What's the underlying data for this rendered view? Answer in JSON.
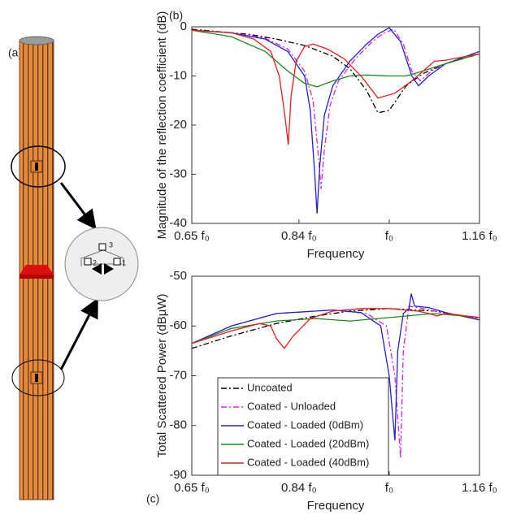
{
  "illustration": {
    "panel_label": "(a)",
    "pins": [
      "3",
      "2",
      "1"
    ]
  },
  "chart_data": [
    {
      "type": "line",
      "panel_label": "(b)",
      "y_label": "Magnitude of the reflection coefficient (dB)",
      "x_label": "Frequency",
      "xlim": [
        0.65,
        1.16
      ],
      "xticks": [
        {
          "value": 0.65,
          "label": "0.65 f₀"
        },
        {
          "value": 0.84,
          "label": "0.84 f₀"
        },
        {
          "value": 1.0,
          "label": "f₀"
        },
        {
          "value": 1.16,
          "label": "1.16 f₀"
        }
      ],
      "ylim": [
        -40,
        0
      ],
      "yticks": [
        -40,
        -30,
        -20,
        -10,
        0
      ],
      "series": [
        {
          "color": "#000000",
          "style": "dashdot",
          "x": [
            0.65,
            0.7,
            0.75,
            0.8,
            0.85,
            0.9,
            0.93,
            0.96,
            0.98,
            1.0,
            1.03,
            1.06,
            1.1,
            1.16
          ],
          "values": [
            -0.5,
            -1,
            -1.5,
            -2.5,
            -3.8,
            -6,
            -8.5,
            -13,
            -17.5,
            -17,
            -12,
            -9.5,
            -7.5,
            -5.5
          ]
        },
        {
          "color": "#e020e0",
          "style": "dashdot",
          "x": [
            0.65,
            0.72,
            0.78,
            0.82,
            0.85,
            0.865,
            0.875,
            0.879,
            0.885,
            0.895,
            0.91,
            0.94,
            0.97,
            0.99,
            1.008,
            1.025,
            1.04,
            1.055,
            1.075,
            1.1,
            1.16
          ],
          "values": [
            -0.7,
            -1.2,
            -2.3,
            -4.5,
            -9,
            -15,
            -27,
            -33,
            -25,
            -16,
            -11,
            -6.5,
            -3,
            -1.3,
            -0.5,
            -3.5,
            -9,
            -11,
            -9,
            -7.5,
            -5
          ]
        },
        {
          "color": "#1f1fe0",
          "style": "solid",
          "x": [
            0.65,
            0.72,
            0.78,
            0.82,
            0.85,
            0.86,
            0.868,
            0.872,
            0.877,
            0.885,
            0.9,
            0.93,
            0.96,
            0.98,
            1.0,
            1.02,
            1.04,
            1.052,
            1.07,
            1.1,
            1.16
          ],
          "values": [
            -0.7,
            -1.2,
            -2.5,
            -5,
            -10,
            -17,
            -30,
            -38,
            -28,
            -18,
            -12,
            -7,
            -3.5,
            -1.5,
            -0.2,
            -3,
            -10,
            -12,
            -10,
            -7.5,
            -5
          ]
        },
        {
          "color": "#1a8a1a",
          "style": "solid",
          "x": [
            0.65,
            0.72,
            0.78,
            0.82,
            0.85,
            0.872,
            0.9,
            0.93,
            0.96,
            1.0,
            1.03,
            1.06,
            1.1,
            1.16
          ],
          "values": [
            -0.7,
            -2,
            -5,
            -9,
            -11.5,
            -12.2,
            -11,
            -10,
            -9.8,
            -10,
            -10,
            -9,
            -7.5,
            -5.5
          ]
        },
        {
          "color": "#ee1c1c",
          "style": "solid",
          "x": [
            0.65,
            0.72,
            0.76,
            0.79,
            0.805,
            0.815,
            0.821,
            0.826,
            0.835,
            0.85,
            0.865,
            0.89,
            0.92,
            0.95,
            0.98,
            1.01,
            1.04,
            1.08,
            1.1,
            1.16
          ],
          "values": [
            -0.7,
            -1.2,
            -2.5,
            -5,
            -10,
            -18,
            -24,
            -14,
            -7,
            -4,
            -3.5,
            -4.5,
            -6.5,
            -10,
            -14.5,
            -13.5,
            -11,
            -7,
            -6.8,
            -5.5
          ]
        }
      ]
    },
    {
      "type": "line",
      "panel_label": "(c)",
      "y_label": "Total Scattered Power (dBμW)",
      "x_label": "Frequency",
      "xlim": [
        0.65,
        1.16
      ],
      "xticks": [
        {
          "value": 0.65,
          "label": "0.65 f₀"
        },
        {
          "value": 0.84,
          "label": "0.84 f₀"
        },
        {
          "value": 1.0,
          "label": "f₀"
        },
        {
          "value": 1.16,
          "label": "1.16 f₀"
        }
      ],
      "ylim": [
        -90,
        -50
      ],
      "yticks": [
        -90,
        -80,
        -70,
        -60,
        -50
      ],
      "legend": "lower left",
      "series": [
        {
          "name": "Uncoated",
          "color": "#000000",
          "style": "dashdot",
          "x": [
            0.65,
            0.72,
            0.8,
            0.87,
            0.93,
            1.0,
            1.08,
            1.16
          ],
          "values": [
            -64.5,
            -62,
            -59.5,
            -58,
            -57,
            -56.5,
            -57,
            -58.5
          ]
        },
        {
          "name": "Coated - Unloaded",
          "color": "#e020e0",
          "style": "dashdot",
          "x": [
            0.65,
            0.72,
            0.8,
            0.9,
            0.96,
            0.995,
            1.01,
            1.02,
            1.025,
            1.035,
            1.06,
            1.1,
            1.16
          ],
          "values": [
            -63.5,
            -60,
            -57.5,
            -56.8,
            -57.5,
            -60,
            -70,
            -86.5,
            -65,
            -56,
            -56.5,
            -57.5,
            -58.5
          ]
        },
        {
          "name": "Coated - Loaded (0dBm)",
          "color": "#1f1fe0",
          "style": "solid",
          "x": [
            0.65,
            0.72,
            0.8,
            0.9,
            0.95,
            0.985,
            1.0,
            1.01,
            1.015,
            1.025,
            1.035,
            1.039,
            1.045,
            1.07,
            1.1,
            1.16
          ],
          "values": [
            -63.5,
            -60,
            -57.5,
            -56.8,
            -57.3,
            -60,
            -70,
            -83,
            -65,
            -57.5,
            -56.5,
            -53.5,
            -56,
            -56.3,
            -57.3,
            -58.8
          ]
        },
        {
          "name": "Coated - Loaded (20dBm)",
          "color": "#1a8a1a",
          "style": "solid",
          "x": [
            0.65,
            0.72,
            0.8,
            0.87,
            0.93,
            0.98,
            1.03,
            1.08,
            1.16
          ],
          "values": [
            -63.5,
            -60.5,
            -59,
            -58.5,
            -59,
            -58.5,
            -58,
            -57.5,
            -58.3
          ]
        },
        {
          "name": "Coated - Loaded (40dBm)",
          "color": "#ee1c1c",
          "style": "solid",
          "x": [
            0.65,
            0.72,
            0.77,
            0.79,
            0.8,
            0.814,
            0.83,
            0.86,
            0.9,
            0.95,
            1.0,
            1.05,
            1.07,
            1.085,
            1.1,
            1.16
          ],
          "values": [
            -63.5,
            -61,
            -59.5,
            -60,
            -62.5,
            -64.5,
            -62,
            -58.5,
            -57,
            -56.5,
            -56.5,
            -57,
            -57.5,
            -58,
            -57.5,
            -58.3
          ]
        }
      ]
    }
  ]
}
